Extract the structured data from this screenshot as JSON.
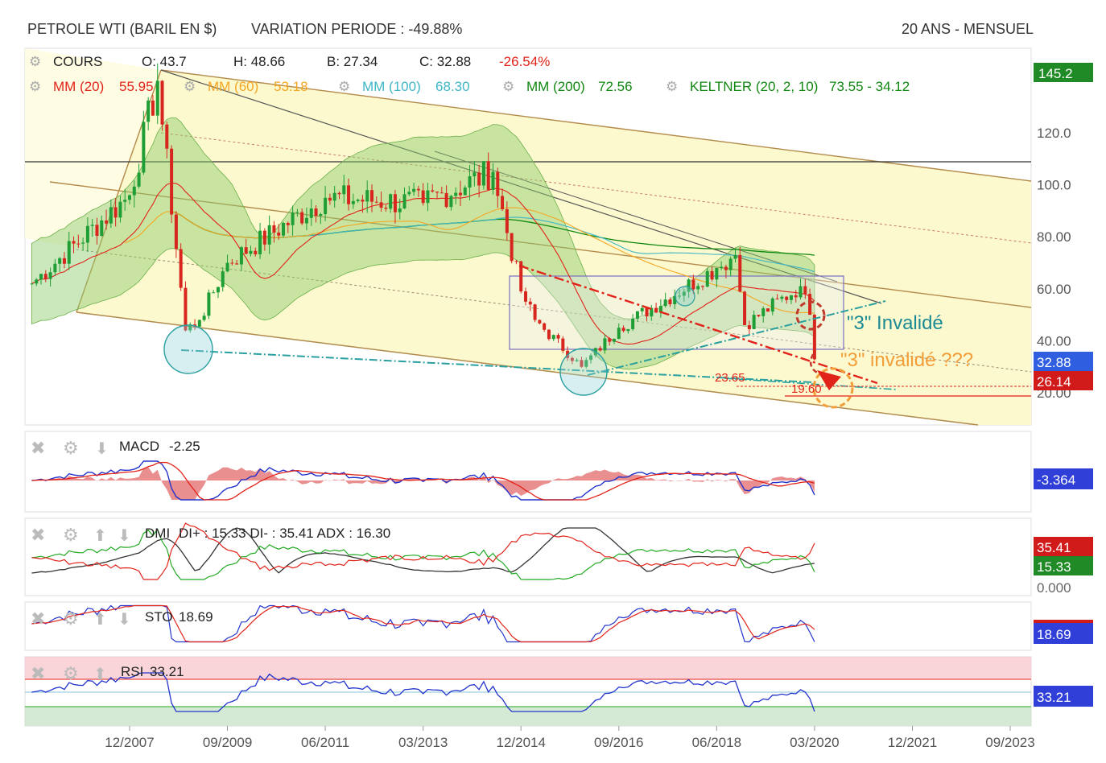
{
  "header": {
    "title": "PETROLE WTI (BARIL EN $)",
    "variation": "VARIATION PERIODE : -49.88%",
    "period": "20 ANS - MENSUEL"
  },
  "legend": {
    "cours": {
      "label": "COURS",
      "o": "O: 43.7",
      "h": "H: 48.66",
      "b": "B: 27.34",
      "c": "C: 32.88",
      "chg": "-26.54%"
    },
    "mm20": {
      "label": "MM (20)",
      "value": "55.95",
      "color": "#e2231a"
    },
    "mm60": {
      "label": "MM (60)",
      "value": "53.18",
      "color": "#f5a623"
    },
    "mm100": {
      "label": "MM (100)",
      "value": "68.30",
      "color": "#3fb6c6"
    },
    "mm200": {
      "label": "MM (200)",
      "value": "72.56",
      "color": "#118811"
    },
    "keltner": {
      "label": "KELTNER (20, 2, 10)",
      "value": "73.55 - 34.12",
      "color": "#118811"
    }
  },
  "annotations": {
    "invalide1": "\"3\" Invalidé",
    "invalide2": "\"3\" invalidé ???",
    "fib1": "23.65",
    "fib2": "19.60"
  },
  "panels": {
    "macd": {
      "label": "MACD",
      "value": "-2.25",
      "badge": "-3.364"
    },
    "dmi": {
      "label": "DMI",
      "text": "DI+ : 15.33 DI- : 35.41 ADX : 16.30",
      "badge_di_minus": "35.41",
      "badge_di_plus": "15.33",
      "zero": "0.000"
    },
    "sto": {
      "label": "STO",
      "value": "18.69",
      "badge": "18.69"
    },
    "rsi": {
      "label": "RSI",
      "value": "33.21",
      "badge": "33.21"
    }
  },
  "price_badges": {
    "max": "145.2",
    "close": "32.88",
    "low": "26.14"
  },
  "chart_data": {
    "type": "line",
    "title": "PETROLE WTI (BARIL EN $)",
    "xlabel": "",
    "ylabel": "",
    "ylim": [
      10,
      150
    ],
    "y_ticks": [
      "120.0",
      "100.0",
      "80.00",
      "60.00",
      "40.00",
      "20.00"
    ],
    "x_ticks": [
      "12/2007",
      "09/2009",
      "06/2011",
      "03/2013",
      "12/2014",
      "09/2016",
      "06/2018",
      "03/2020",
      "12/2021",
      "09/2023"
    ],
    "series": [
      {
        "name": "COURS",
        "x": [
          "03/2006",
          "12/2007",
          "06/2008",
          "12/2008",
          "03/2009",
          "09/2009",
          "06/2011",
          "03/2013",
          "06/2014",
          "12/2014",
          "03/2015",
          "01/2016",
          "09/2016",
          "06/2018",
          "10/2018",
          "12/2018",
          "12/2019",
          "02/2020",
          "03/2020"
        ],
        "values": [
          62,
          96,
          140,
          44,
          48,
          70,
          95,
          93,
          105,
          59,
          48,
          30,
          45,
          68,
          73,
          46,
          61,
          50,
          32.88
        ]
      }
    ],
    "horizontal_levels": [
      110,
      23.65,
      19.6
    ],
    "grid": false,
    "legend": "top-left"
  }
}
